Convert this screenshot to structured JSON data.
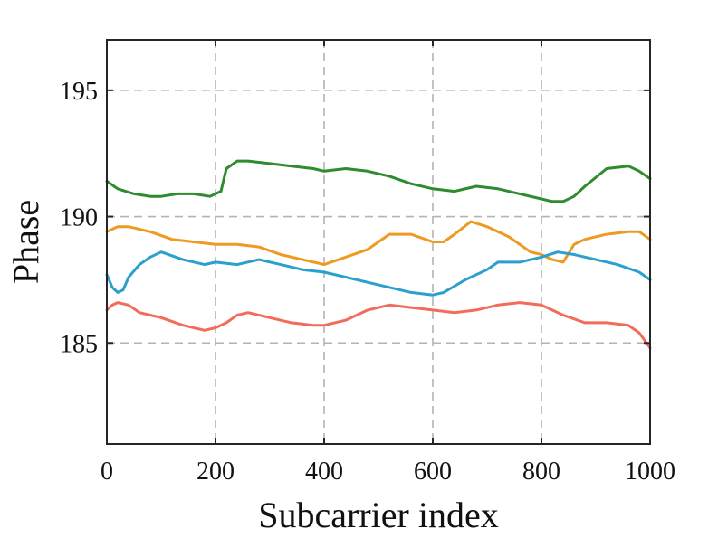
{
  "chart_data": {
    "type": "line",
    "title": "",
    "xlabel": "Subcarrier index",
    "ylabel": "Phase",
    "xlim": [
      0,
      1000
    ],
    "ylim": [
      181,
      197
    ],
    "x_ticks": [
      0,
      200,
      400,
      600,
      800,
      1000
    ],
    "x_tick_labels": [
      "0",
      "200",
      "400",
      "600",
      "800",
      "1000"
    ],
    "y_ticks": [
      185,
      190,
      195
    ],
    "y_tick_labels": [
      "185",
      "190",
      "195"
    ],
    "grid": true,
    "legend": "none",
    "series": [
      {
        "color": "#2e8b2e",
        "x": [
          0,
          20,
          50,
          80,
          100,
          130,
          160,
          190,
          200,
          210,
          220,
          240,
          260,
          300,
          340,
          380,
          400,
          440,
          480,
          520,
          560,
          600,
          640,
          680,
          720,
          760,
          800,
          820,
          840,
          860,
          880,
          920,
          960,
          980,
          1000
        ],
        "y": [
          191.4,
          191.1,
          190.9,
          190.8,
          190.8,
          190.9,
          190.9,
          190.8,
          190.9,
          191.0,
          191.9,
          192.2,
          192.2,
          192.1,
          192.0,
          191.9,
          191.8,
          191.9,
          191.8,
          191.6,
          191.3,
          191.1,
          191.0,
          191.2,
          191.1,
          190.9,
          190.7,
          190.6,
          190.6,
          190.8,
          191.2,
          191.9,
          192.0,
          191.8,
          191.5
        ]
      },
      {
        "color": "#ee9a22",
        "x": [
          0,
          20,
          40,
          80,
          120,
          160,
          200,
          240,
          280,
          320,
          360,
          400,
          440,
          480,
          520,
          560,
          600,
          620,
          640,
          670,
          700,
          740,
          780,
          800,
          820,
          840,
          860,
          880,
          920,
          960,
          980,
          1000
        ],
        "y": [
          189.4,
          189.6,
          189.6,
          189.4,
          189.1,
          189.0,
          188.9,
          188.9,
          188.8,
          188.5,
          188.3,
          188.1,
          188.4,
          188.7,
          189.3,
          189.3,
          189.0,
          189.0,
          189.3,
          189.8,
          189.6,
          189.2,
          188.6,
          188.5,
          188.3,
          188.2,
          188.9,
          189.1,
          189.3,
          189.4,
          189.4,
          189.1
        ]
      },
      {
        "color": "#2b9fce",
        "x": [
          0,
          10,
          20,
          30,
          40,
          60,
          80,
          100,
          140,
          180,
          200,
          240,
          280,
          320,
          360,
          400,
          440,
          480,
          520,
          560,
          600,
          620,
          660,
          700,
          720,
          760,
          800,
          830,
          860,
          900,
          940,
          980,
          1000
        ],
        "y": [
          187.7,
          187.2,
          187.0,
          187.1,
          187.6,
          188.1,
          188.4,
          188.6,
          188.3,
          188.1,
          188.2,
          188.1,
          188.3,
          188.1,
          187.9,
          187.8,
          187.6,
          187.4,
          187.2,
          187.0,
          186.9,
          187.0,
          187.5,
          187.9,
          188.2,
          188.2,
          188.4,
          188.6,
          188.5,
          188.3,
          188.1,
          187.8,
          187.5
        ]
      },
      {
        "color": "#f26b5b",
        "x": [
          0,
          10,
          20,
          40,
          60,
          80,
          100,
          140,
          180,
          200,
          220,
          240,
          260,
          300,
          340,
          380,
          400,
          440,
          480,
          520,
          560,
          600,
          640,
          680,
          720,
          760,
          800,
          840,
          880,
          920,
          960,
          980,
          1000
        ],
        "y": [
          186.3,
          186.5,
          186.6,
          186.5,
          186.2,
          186.1,
          186.0,
          185.7,
          185.5,
          185.6,
          185.8,
          186.1,
          186.2,
          186.0,
          185.8,
          185.7,
          185.7,
          185.9,
          186.3,
          186.5,
          186.4,
          186.3,
          186.2,
          186.3,
          186.5,
          186.6,
          186.5,
          186.1,
          185.8,
          185.8,
          185.7,
          185.4,
          184.8
        ]
      }
    ]
  }
}
